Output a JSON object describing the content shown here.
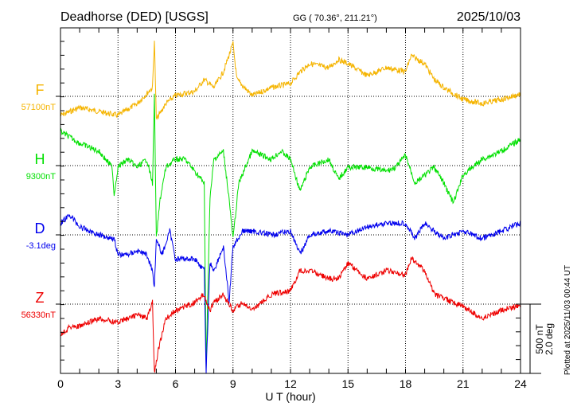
{
  "chart_data": {
    "type": "line",
    "title": "Deadhorse (DED)  [USGS]",
    "coords": "GG ( 70.36°, 211.21°)",
    "date": "2025/10/03",
    "xlabel": "U T (hour)",
    "xlim": [
      0,
      24
    ],
    "xticks": [
      "0",
      "3",
      "6",
      "9",
      "12",
      "15",
      "18",
      "21",
      "24"
    ],
    "scale_label_nT": "500 nT",
    "scale_label_deg": "2.0 deg",
    "scale_nT": 500,
    "scale_deg": 2.0,
    "plotted_note": "Plotted at 2025/11/03 00:44 UT",
    "grid": "dotted",
    "series": [
      {
        "name": "F",
        "baseline_label": "57100nT",
        "color": "#f5b400",
        "unit": "nT",
        "values": [
          [
            0,
            -138
          ],
          [
            1,
            -81
          ],
          [
            2,
            -109
          ],
          [
            3,
            -138
          ],
          [
            4,
            -52
          ],
          [
            4.8,
            63
          ],
          [
            4.9,
            408
          ],
          [
            5,
            -167
          ],
          [
            5.5,
            -52
          ],
          [
            6,
            6
          ],
          [
            7,
            35
          ],
          [
            7.5,
            121
          ],
          [
            8,
            63
          ],
          [
            8.5,
            178
          ],
          [
            9,
            380
          ],
          [
            9.2,
            121
          ],
          [
            10,
            6
          ],
          [
            11,
            63
          ],
          [
            12,
            92
          ],
          [
            12.5,
            178
          ],
          [
            13,
            236
          ],
          [
            14,
            207
          ],
          [
            14.5,
            265
          ],
          [
            15,
            236
          ],
          [
            16,
            150
          ],
          [
            17,
            207
          ],
          [
            18,
            178
          ],
          [
            18.3,
            293
          ],
          [
            19,
            236
          ],
          [
            19.5,
            121
          ],
          [
            20,
            63
          ],
          [
            21,
            -23
          ],
          [
            22,
            -52
          ],
          [
            23,
            -23
          ],
          [
            24,
            17
          ]
        ]
      },
      {
        "name": "H",
        "baseline_label": "9300nT",
        "color": "#00e000",
        "unit": "nT",
        "values": [
          [
            0,
            247
          ],
          [
            1,
            161
          ],
          [
            2,
            104
          ],
          [
            2.7,
            -12
          ],
          [
            2.8,
            -213
          ],
          [
            3,
            -12
          ],
          [
            3.5,
            46
          ],
          [
            4,
            -12
          ],
          [
            4.5,
            46
          ],
          [
            4.8,
            -127
          ],
          [
            4.9,
            506
          ],
          [
            5,
            -529
          ],
          [
            5.2,
            -242
          ],
          [
            5.5,
            -12
          ],
          [
            6,
            46
          ],
          [
            6.5,
            46
          ],
          [
            7,
            -40
          ],
          [
            7.5,
            -127
          ],
          [
            7.6,
            -1449
          ],
          [
            7.8,
            -242
          ],
          [
            8,
            46
          ],
          [
            8.5,
            104
          ],
          [
            8.8,
            -242
          ],
          [
            9,
            -529
          ],
          [
            9.3,
            -127
          ],
          [
            10,
            104
          ],
          [
            11,
            46
          ],
          [
            11.5,
            104
          ],
          [
            12,
            46
          ],
          [
            12.5,
            -184
          ],
          [
            13,
            -12
          ],
          [
            14,
            46
          ],
          [
            14.5,
            -98
          ],
          [
            15,
            -12
          ],
          [
            16,
            -12
          ],
          [
            17,
            -40
          ],
          [
            17.5,
            -12
          ],
          [
            18,
            75
          ],
          [
            18.5,
            -127
          ],
          [
            19,
            -69
          ],
          [
            19.5,
            -12
          ],
          [
            20,
            -127
          ],
          [
            20.5,
            -270
          ],
          [
            21,
            -69
          ],
          [
            22,
            46
          ],
          [
            23,
            104
          ],
          [
            24,
            190
          ]
        ]
      },
      {
        "name": "D",
        "baseline_label": "-3.1deg",
        "color": "#0000ee",
        "unit": "deg",
        "values": [
          [
            0,
            0.34
          ],
          [
            0.5,
            0.57
          ],
          [
            1,
            0.23
          ],
          [
            2,
            0
          ],
          [
            2.8,
            -0.11
          ],
          [
            3,
            -0.57
          ],
          [
            3.5,
            -0.57
          ],
          [
            4,
            -0.46
          ],
          [
            4.5,
            -0.57
          ],
          [
            4.8,
            -1.03
          ],
          [
            4.9,
            -1.49
          ],
          [
            5,
            -0.11
          ],
          [
            5.3,
            -0.57
          ],
          [
            5.7,
            0.11
          ],
          [
            6,
            -0.69
          ],
          [
            6.5,
            -0.69
          ],
          [
            7,
            -0.69
          ],
          [
            7.5,
            -1.03
          ],
          [
            7.6,
            -4.0
          ],
          [
            7.8,
            -0.8
          ],
          [
            8,
            -1.03
          ],
          [
            8.5,
            -0.34
          ],
          [
            8.8,
            -1.95
          ],
          [
            9,
            -0.34
          ],
          [
            9.5,
            0.11
          ],
          [
            10,
            0.11
          ],
          [
            11,
            0
          ],
          [
            12,
            0.11
          ],
          [
            12.5,
            -0.57
          ],
          [
            13,
            0
          ],
          [
            14,
            0.11
          ],
          [
            15,
            0
          ],
          [
            16,
            0.23
          ],
          [
            17,
            0.34
          ],
          [
            18,
            0.34
          ],
          [
            18.5,
            -0.11
          ],
          [
            19,
            0.34
          ],
          [
            20,
            -0.11
          ],
          [
            21,
            0.11
          ],
          [
            22,
            -0.11
          ],
          [
            23,
            0.11
          ],
          [
            24,
            0.34
          ]
        ]
      },
      {
        "name": "Z",
        "baseline_label": "56330nT",
        "color": "#ee0000",
        "unit": "nT",
        "values": [
          [
            0,
            -219
          ],
          [
            0.5,
            -161
          ],
          [
            1,
            -161
          ],
          [
            2,
            -104
          ],
          [
            3,
            -132
          ],
          [
            4,
            -75
          ],
          [
            4.5,
            -104
          ],
          [
            4.8,
            12
          ],
          [
            4.9,
            -500
          ],
          [
            5.1,
            -334
          ],
          [
            5.5,
            -104
          ],
          [
            6,
            -46
          ],
          [
            7,
            12
          ],
          [
            7.5,
            69
          ],
          [
            7.8,
            -46
          ],
          [
            8,
            12
          ],
          [
            8.5,
            69
          ],
          [
            9,
            -46
          ],
          [
            9.5,
            12
          ],
          [
            10,
            -46
          ],
          [
            11,
            69
          ],
          [
            12,
            98
          ],
          [
            12.5,
            242
          ],
          [
            13,
            242
          ],
          [
            14,
            184
          ],
          [
            14.5,
            184
          ],
          [
            15,
            299
          ],
          [
            16,
            184
          ],
          [
            17,
            242
          ],
          [
            18,
            213
          ],
          [
            18.3,
            328
          ],
          [
            19,
            242
          ],
          [
            19.5,
            69
          ],
          [
            20,
            40
          ],
          [
            21,
            -17
          ],
          [
            22,
            -104
          ],
          [
            23,
            -46
          ],
          [
            24,
            -6
          ]
        ]
      }
    ]
  }
}
